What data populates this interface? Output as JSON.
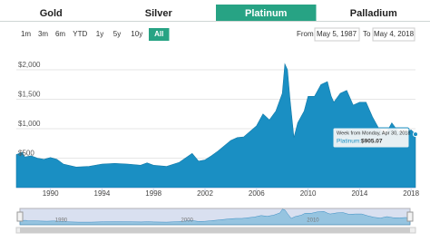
{
  "tabs": [
    "Gold",
    "Silver",
    "Platinum",
    "Palladium"
  ],
  "active_tab": 2,
  "range_buttons": [
    "1m",
    "3m",
    "6m",
    "YTD",
    "1y",
    "5y",
    "10y",
    "All"
  ],
  "active_range": 7,
  "from_label": "From",
  "from": "May 5, 1987",
  "to_label": "To",
  "to": "May 4, 2018",
  "tooltip": {
    "header": "Week from Monday, Apr 30, 2018",
    "name": "Platinum:",
    "value_label": "$905.07"
  },
  "chart_data": {
    "type": "area",
    "x": [
      1987.35,
      1987.8,
      1988,
      1988.5,
      1989,
      1989.5,
      1990,
      1990.5,
      1991,
      1992,
      1993,
      1994,
      1995,
      1996,
      1997,
      1997.5,
      1998,
      1999,
      2000,
      2001,
      2001.5,
      2002,
      2002.5,
      2003,
      2004,
      2004.5,
      2005,
      2006,
      2006.5,
      2007,
      2007.5,
      2008,
      2008.2,
      2008.4,
      2008.6,
      2008.9,
      2009.2,
      2009.7,
      2010,
      2010.5,
      2011,
      2011.5,
      2011.8,
      2012,
      2012.5,
      2013,
      2013.5,
      2014,
      2014.5,
      2015,
      2015.5,
      2016,
      2016.5,
      2017,
      2017.5,
      2018,
      2018.34
    ],
    "series": [
      {
        "name": "Platinum",
        "color": "#1a8fc3",
        "values": [
          560,
          600,
          520,
          540,
          500,
          480,
          510,
          480,
          400,
          350,
          360,
          400,
          410,
          400,
          380,
          420,
          380,
          360,
          430,
          580,
          450,
          470,
          540,
          620,
          800,
          850,
          860,
          1050,
          1250,
          1150,
          1300,
          1600,
          2100,
          2000,
          1500,
          850,
          1100,
          1300,
          1550,
          1550,
          1750,
          1800,
          1550,
          1450,
          1600,
          1650,
          1400,
          1450,
          1450,
          1200,
          1000,
          900,
          1100,
          950,
          930,
          980,
          905.07
        ]
      }
    ],
    "xlim": [
      1987.35,
      2018.34
    ],
    "xticks": [
      1990,
      1994,
      1998,
      2002,
      2006,
      2010,
      2014,
      2018
    ],
    "ylim": [
      0,
      2200
    ],
    "yticks": [
      {
        "value": 500,
        "label": "$500"
      },
      {
        "value": 1000,
        "label": "$1,000"
      },
      {
        "value": 1500,
        "label": "$1,500"
      },
      {
        "value": 2000,
        "label": "$2,000"
      }
    ],
    "grid": true,
    "navigator_ticks": [
      1990,
      2000,
      2010
    ]
  }
}
